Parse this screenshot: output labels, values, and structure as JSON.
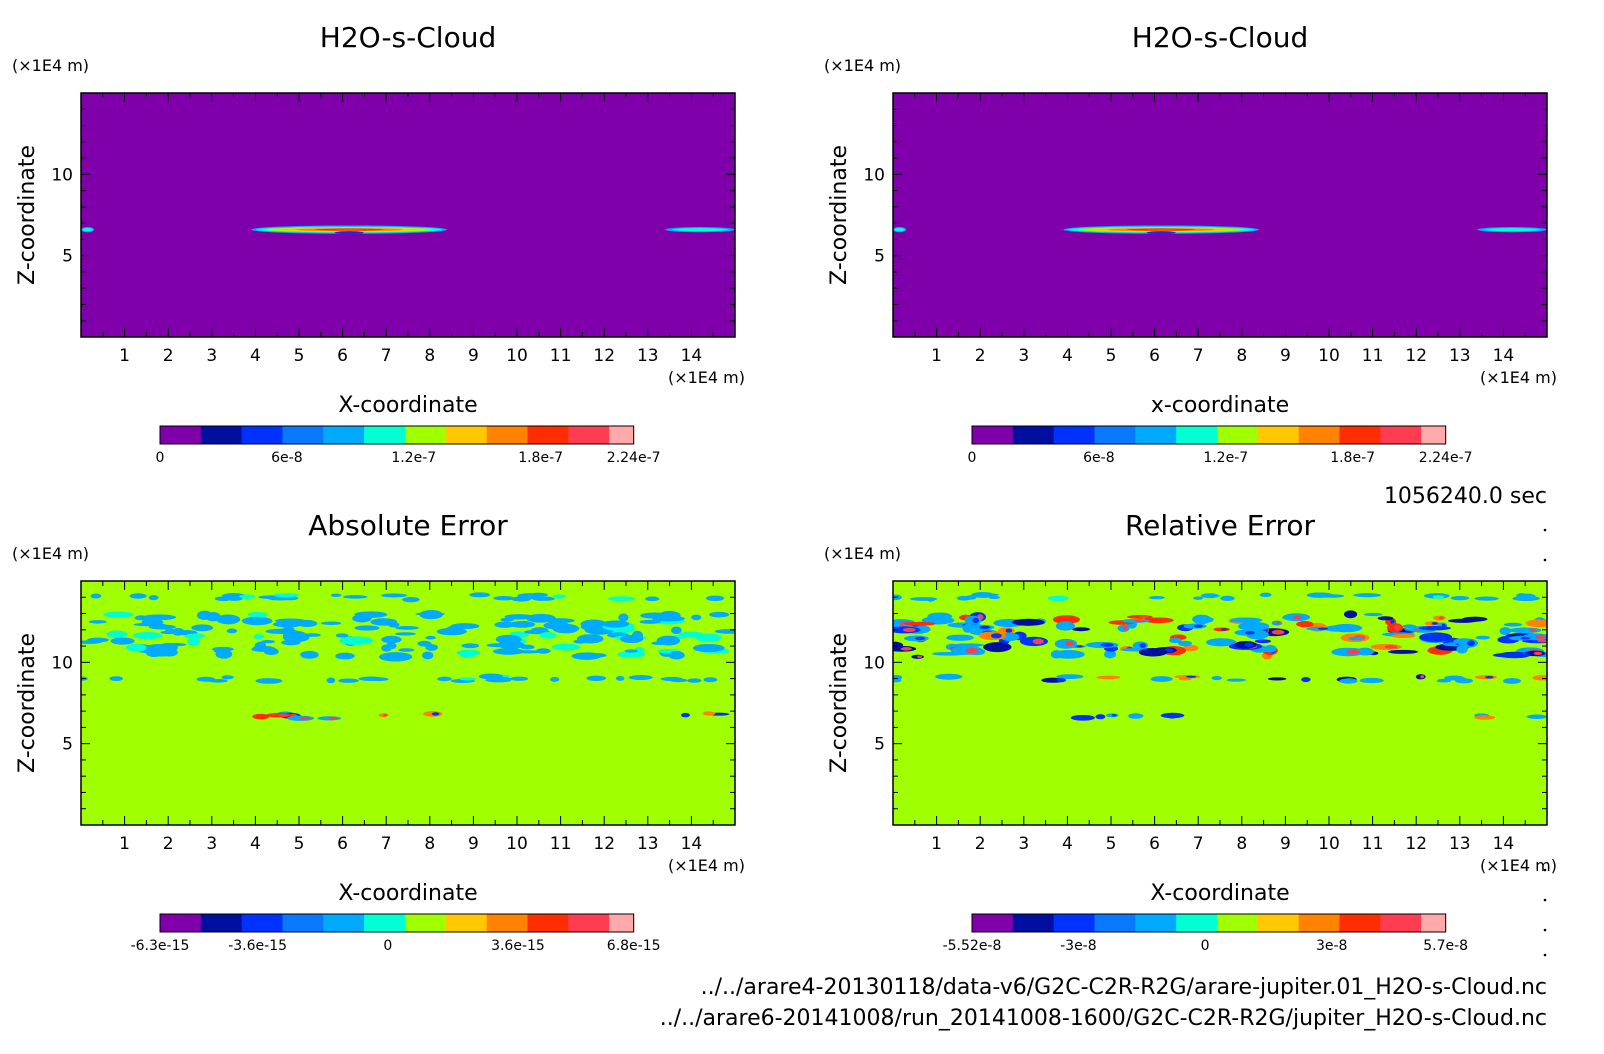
{
  "figure": {
    "time_label": "1056240.0 sec",
    "file_paths": [
      "../../arare4-20130118/data-v6/G2C-C2R-R2G/arare-jupiter.01_H2O-s-Cloud.nc",
      "../../arare6-20141008/run_20141008-1600/G2C-C2R-R2G/jupiter_H2O-s-Cloud.nc"
    ]
  },
  "chart_data": [
    {
      "type": "heatmap",
      "title": "H2O-s-Cloud",
      "xlabel": "X-coordinate",
      "ylabel": "Z-coordinate",
      "x_unit": "(×1E4 m)",
      "y_unit": "(×1E4 m)",
      "xlim": [
        0,
        15
      ],
      "ylim": [
        0,
        15
      ],
      "xticks": [
        "1",
        "2",
        "3",
        "4",
        "5",
        "6",
        "7",
        "8",
        "9",
        "10",
        "11",
        "12",
        "13",
        "14"
      ],
      "yticks": [
        "5",
        "10"
      ],
      "background_color": "#7f00aa",
      "features": [
        {
          "x_range": [
            3.9,
            8.4
          ],
          "z": 6.6,
          "peak": 2.24e-07
        },
        {
          "x_range": [
            13.4,
            15.0
          ],
          "z": 6.6,
          "peak": 8e-08
        },
        {
          "x_range": [
            0.0,
            0.3
          ],
          "z": 6.6,
          "peak": 8e-08
        }
      ],
      "colorbar": {
        "colors": [
          "#7f00aa",
          "#000fa0",
          "#0032ff",
          "#0a78ff",
          "#00aaff",
          "#00ffd2",
          "#a0ff00",
          "#ffc800",
          "#ff8200",
          "#ff2d00",
          "#ff3c50",
          "#ffaaaa"
        ],
        "tick_labels": [
          "0",
          "6e-8",
          "1.2e-7",
          "1.8e-7",
          "2.24e-7"
        ],
        "tick_values": [
          0,
          6e-08,
          1.2e-07,
          1.8e-07,
          2.24e-07
        ],
        "range": [
          0,
          2.24e-07
        ]
      }
    },
    {
      "type": "heatmap",
      "title": "H2O-s-Cloud",
      "xlabel": "x-coordinate",
      "ylabel": "Z-coordinate",
      "x_unit": "(×1E4 m)",
      "y_unit": "(×1E4 m)",
      "xlim": [
        0,
        15
      ],
      "ylim": [
        0,
        15
      ],
      "xticks": [
        "1",
        "2",
        "3",
        "4",
        "5",
        "6",
        "7",
        "8",
        "9",
        "10",
        "11",
        "12",
        "13",
        "14"
      ],
      "yticks": [
        "5",
        "10"
      ],
      "background_color": "#7f00aa",
      "features": [
        {
          "x_range": [
            3.9,
            8.4
          ],
          "z": 6.6,
          "peak": 2.24e-07
        },
        {
          "x_range": [
            13.4,
            15.0
          ],
          "z": 6.6,
          "peak": 8e-08
        },
        {
          "x_range": [
            0.0,
            0.3
          ],
          "z": 6.6,
          "peak": 8e-08
        }
      ],
      "colorbar": {
        "colors": [
          "#7f00aa",
          "#000fa0",
          "#0032ff",
          "#0a78ff",
          "#00aaff",
          "#00ffd2",
          "#a0ff00",
          "#ffc800",
          "#ff8200",
          "#ff2d00",
          "#ff3c50",
          "#ffaaaa"
        ],
        "tick_labels": [
          "0",
          "6e-8",
          "1.2e-7",
          "1.8e-7",
          "2.24e-7"
        ],
        "tick_values": [
          0,
          6e-08,
          1.2e-07,
          1.8e-07,
          2.24e-07
        ],
        "range": [
          0,
          2.24e-07
        ]
      }
    },
    {
      "type": "heatmap",
      "title": "Absolute Error",
      "xlabel": "X-coordinate",
      "ylabel": "Z-coordinate",
      "x_unit": "(×1E4 m)",
      "y_unit": "(×1E4 m)",
      "xlim": [
        0,
        15
      ],
      "ylim": [
        0,
        15
      ],
      "xticks": [
        "1",
        "2",
        "3",
        "4",
        "5",
        "6",
        "7",
        "8",
        "9",
        "10",
        "11",
        "12",
        "13",
        "14"
      ],
      "yticks": [
        "5",
        "10"
      ],
      "background_color": "#a0ff00",
      "bands": [
        {
          "z": 14.0,
          "x_range": [
            0,
            15
          ],
          "level": "negative"
        },
        {
          "z": 12.3,
          "x_range": [
            0,
            15
          ],
          "level": "negative"
        },
        {
          "z": 11.0,
          "x_range": [
            0,
            15
          ],
          "level": "negative"
        },
        {
          "z": 9.0,
          "x_range": [
            0,
            15
          ],
          "level": "negative"
        },
        {
          "z": 6.7,
          "x_range": [
            3.9,
            8.4
          ],
          "level": "mixed"
        },
        {
          "z": 6.7,
          "x_range": [
            13.4,
            15.0
          ],
          "level": "mixed"
        }
      ],
      "colorbar": {
        "colors": [
          "#7f00aa",
          "#000fa0",
          "#0032ff",
          "#0a78ff",
          "#00aaff",
          "#00ffd2",
          "#a0ff00",
          "#ffc800",
          "#ff8200",
          "#ff2d00",
          "#ff3c50",
          "#ffaaaa"
        ],
        "tick_labels": [
          "-6.3e-15",
          "-3.6e-15",
          "0",
          "3.6e-15",
          "6.8e-15"
        ],
        "tick_values": [
          -6.3e-15,
          -3.6e-15,
          0,
          3.6e-15,
          6.8e-15
        ],
        "range": [
          -6.3e-15,
          6.8e-15
        ]
      }
    },
    {
      "type": "heatmap",
      "title": "Relative Error",
      "xlabel": "X-coordinate",
      "ylabel": "Z-coordinate",
      "x_unit": "(×1E4 m)",
      "y_unit": "(×1E4 m)",
      "xlim": [
        0,
        15
      ],
      "ylim": [
        0,
        15
      ],
      "xticks": [
        "1",
        "2",
        "3",
        "4",
        "5",
        "6",
        "7",
        "8",
        "9",
        "10",
        "11",
        "12",
        "13",
        "14"
      ],
      "yticks": [
        "5",
        "10"
      ],
      "background_color": "#a0ff00",
      "bands": [
        {
          "z": 14.0,
          "x_range": [
            0,
            15
          ],
          "level": "negative"
        },
        {
          "z": 12.3,
          "x_range": [
            0,
            15
          ],
          "level": "mixed"
        },
        {
          "z": 11.0,
          "x_range": [
            0,
            15
          ],
          "level": "mixed"
        },
        {
          "z": 9.0,
          "x_range": [
            0,
            15
          ],
          "level": "mixed"
        },
        {
          "z": 6.7,
          "x_range": [
            3.9,
            8.4
          ],
          "level": "mixed"
        },
        {
          "z": 6.7,
          "x_range": [
            13.4,
            15.0
          ],
          "level": "mixed"
        }
      ],
      "colorbar": {
        "colors": [
          "#7f00aa",
          "#000fa0",
          "#0032ff",
          "#0a78ff",
          "#00aaff",
          "#00ffd2",
          "#a0ff00",
          "#ffc800",
          "#ff8200",
          "#ff2d00",
          "#ff3c50",
          "#ffaaaa"
        ],
        "tick_labels": [
          "-5.52e-8",
          "-3e-8",
          "0",
          "3e-8",
          "5.7e-8"
        ],
        "tick_values": [
          -5.52e-08,
          -3e-08,
          0,
          3e-08,
          5.7e-08
        ],
        "range": [
          -5.52e-08,
          5.7e-08
        ]
      }
    }
  ]
}
